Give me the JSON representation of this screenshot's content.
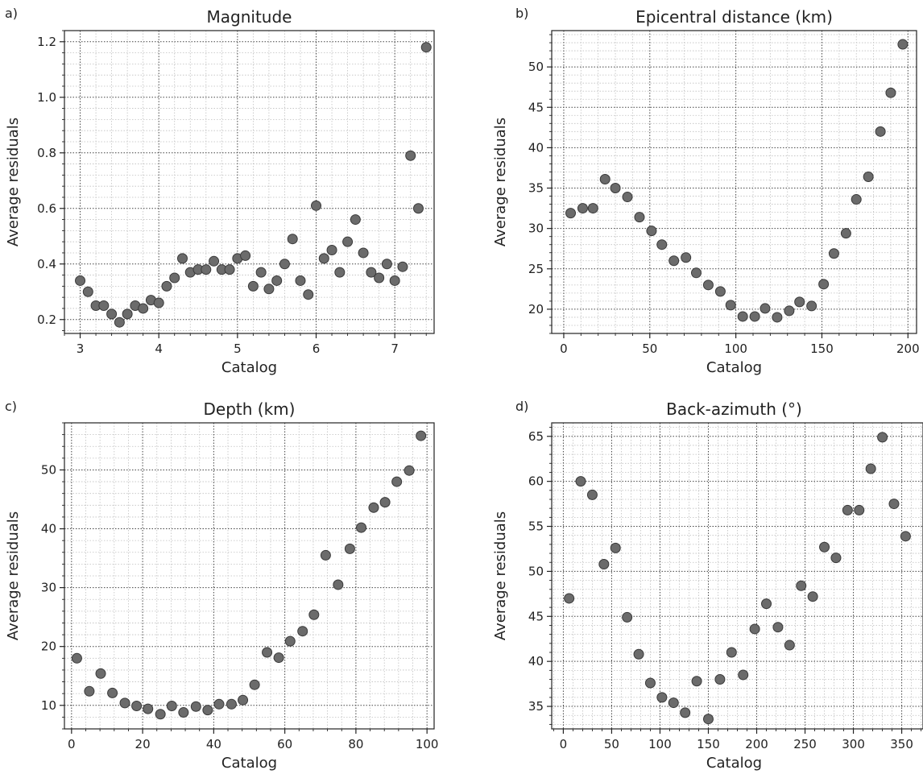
{
  "chart_data": [
    {
      "type": "scatter",
      "panel": "a)",
      "title": "Magnitude",
      "xlabel": "Catalog",
      "ylabel": "Average residuals",
      "xlim": [
        2.8,
        7.5
      ],
      "ylim": [
        0.15,
        1.24
      ],
      "xticks": [
        3,
        4,
        5,
        6,
        7
      ],
      "yticks": [
        0.2,
        0.4,
        0.6,
        0.8,
        1.0,
        1.2
      ],
      "ytick_labels": [
        "0.2",
        "0.4",
        "0.6",
        "0.8",
        "1.0",
        "1.2"
      ],
      "grid": true,
      "x": [
        3.0,
        3.1,
        3.2,
        3.3,
        3.4,
        3.5,
        3.6,
        3.7,
        3.8,
        3.9,
        4.0,
        4.1,
        4.2,
        4.3,
        4.4,
        4.5,
        4.6,
        4.7,
        4.8,
        4.9,
        5.0,
        5.1,
        5.2,
        5.3,
        5.4,
        5.5,
        5.6,
        5.7,
        5.8,
        5.9,
        6.0,
        6.1,
        6.2,
        6.3,
        6.4,
        6.5,
        6.6,
        6.7,
        6.8,
        6.9,
        7.0,
        7.1,
        7.2,
        7.3,
        7.4
      ],
      "y": [
        0.34,
        0.3,
        0.25,
        0.25,
        0.22,
        0.19,
        0.22,
        0.25,
        0.24,
        0.27,
        0.26,
        0.32,
        0.35,
        0.42,
        0.37,
        0.38,
        0.38,
        0.41,
        0.38,
        0.38,
        0.42,
        0.43,
        0.32,
        0.37,
        0.31,
        0.34,
        0.4,
        0.49,
        0.34,
        0.29,
        0.61,
        0.42,
        0.45,
        0.37,
        0.48,
        0.56,
        0.44,
        0.37,
        0.35,
        0.4,
        0.34,
        0.39,
        0.79,
        0.6,
        1.18
      ]
    },
    {
      "type": "scatter",
      "panel": "b)",
      "title": "Epicentral distance (km)",
      "xlabel": "Catalog",
      "ylabel": "Average residuals",
      "xlim": [
        -7,
        205
      ],
      "ylim": [
        17,
        54.5
      ],
      "xticks": [
        0,
        50,
        100,
        150,
        200
      ],
      "yticks": [
        20,
        25,
        30,
        35,
        40,
        45,
        50
      ],
      "ytick_labels": [
        "20",
        "25",
        "30",
        "35",
        "40",
        "45",
        "50"
      ],
      "grid": true,
      "x": [
        4,
        11,
        17,
        24,
        30,
        37,
        44,
        51,
        57,
        64,
        71,
        77,
        84,
        91,
        97,
        104,
        111,
        117,
        124,
        131,
        137,
        144,
        151,
        157,
        164,
        170,
        177,
        184,
        190,
        197
      ],
      "y": [
        31.9,
        32.5,
        32.5,
        36.1,
        35.0,
        33.9,
        31.4,
        29.7,
        28.0,
        26.0,
        26.4,
        24.5,
        23.0,
        22.2,
        20.5,
        19.1,
        19.1,
        20.1,
        19.0,
        19.8,
        20.9,
        20.4,
        23.1,
        26.9,
        29.4,
        33.6,
        36.4,
        42.0,
        46.8,
        52.8
      ]
    },
    {
      "type": "scatter",
      "panel": "c)",
      "title": "Depth (km)",
      "xlabel": "Catalog",
      "ylabel": "Average residuals",
      "xlim": [
        -2,
        102
      ],
      "ylim": [
        6,
        58
      ],
      "xticks": [
        0,
        20,
        40,
        60,
        80,
        100
      ],
      "yticks": [
        10,
        20,
        30,
        40,
        50
      ],
      "ytick_labels": [
        "10",
        "20",
        "30",
        "40",
        "50"
      ],
      "grid": true,
      "x": [
        1.5,
        5,
        8.2,
        11.5,
        15,
        18.3,
        21.5,
        25,
        28.2,
        31.5,
        35,
        38.3,
        41.5,
        45,
        48.2,
        51.5,
        55,
        58.3,
        61.5,
        65,
        68.2,
        71.5,
        75,
        78.3,
        81.5,
        85,
        88.2,
        91.5,
        95,
        98.3
      ],
      "y": [
        18.0,
        12.4,
        15.4,
        12.1,
        10.4,
        9.9,
        9.4,
        8.5,
        9.9,
        8.8,
        9.8,
        9.2,
        10.2,
        10.2,
        10.9,
        13.5,
        19.0,
        18.1,
        20.9,
        22.6,
        25.4,
        35.5,
        30.5,
        36.6,
        40.2,
        43.6,
        44.5,
        48.0,
        49.9,
        55.8
      ]
    },
    {
      "type": "scatter",
      "panel": "d)",
      "title": "Back-azimuth (°)",
      "xlabel": "Catalog",
      "ylabel": "Average residuals",
      "xlim": [
        -12,
        372
      ],
      "ylim": [
        32.5,
        66.5
      ],
      "xticks": [
        0,
        50,
        100,
        150,
        200,
        250,
        300,
        350
      ],
      "yticks": [
        35,
        40,
        45,
        50,
        55,
        60,
        65
      ],
      "ytick_labels": [
        "35",
        "40",
        "45",
        "50",
        "55",
        "60",
        "65"
      ],
      "grid": true,
      "x": [
        6,
        18,
        30,
        42,
        54,
        66,
        78,
        90,
        102,
        114,
        126,
        138,
        150,
        162,
        174,
        186,
        198,
        210,
        222,
        234,
        246,
        258,
        270,
        282,
        294,
        306,
        318,
        330,
        342,
        354
      ],
      "y": [
        47.0,
        60.0,
        58.5,
        50.8,
        52.6,
        44.9,
        40.8,
        37.6,
        36.0,
        35.4,
        34.3,
        37.8,
        33.6,
        38.0,
        41.0,
        38.5,
        43.6,
        46.4,
        43.8,
        41.8,
        48.4,
        47.2,
        52.7,
        51.5,
        56.8,
        56.8,
        61.4,
        64.9,
        57.5,
        53.9
      ]
    }
  ]
}
